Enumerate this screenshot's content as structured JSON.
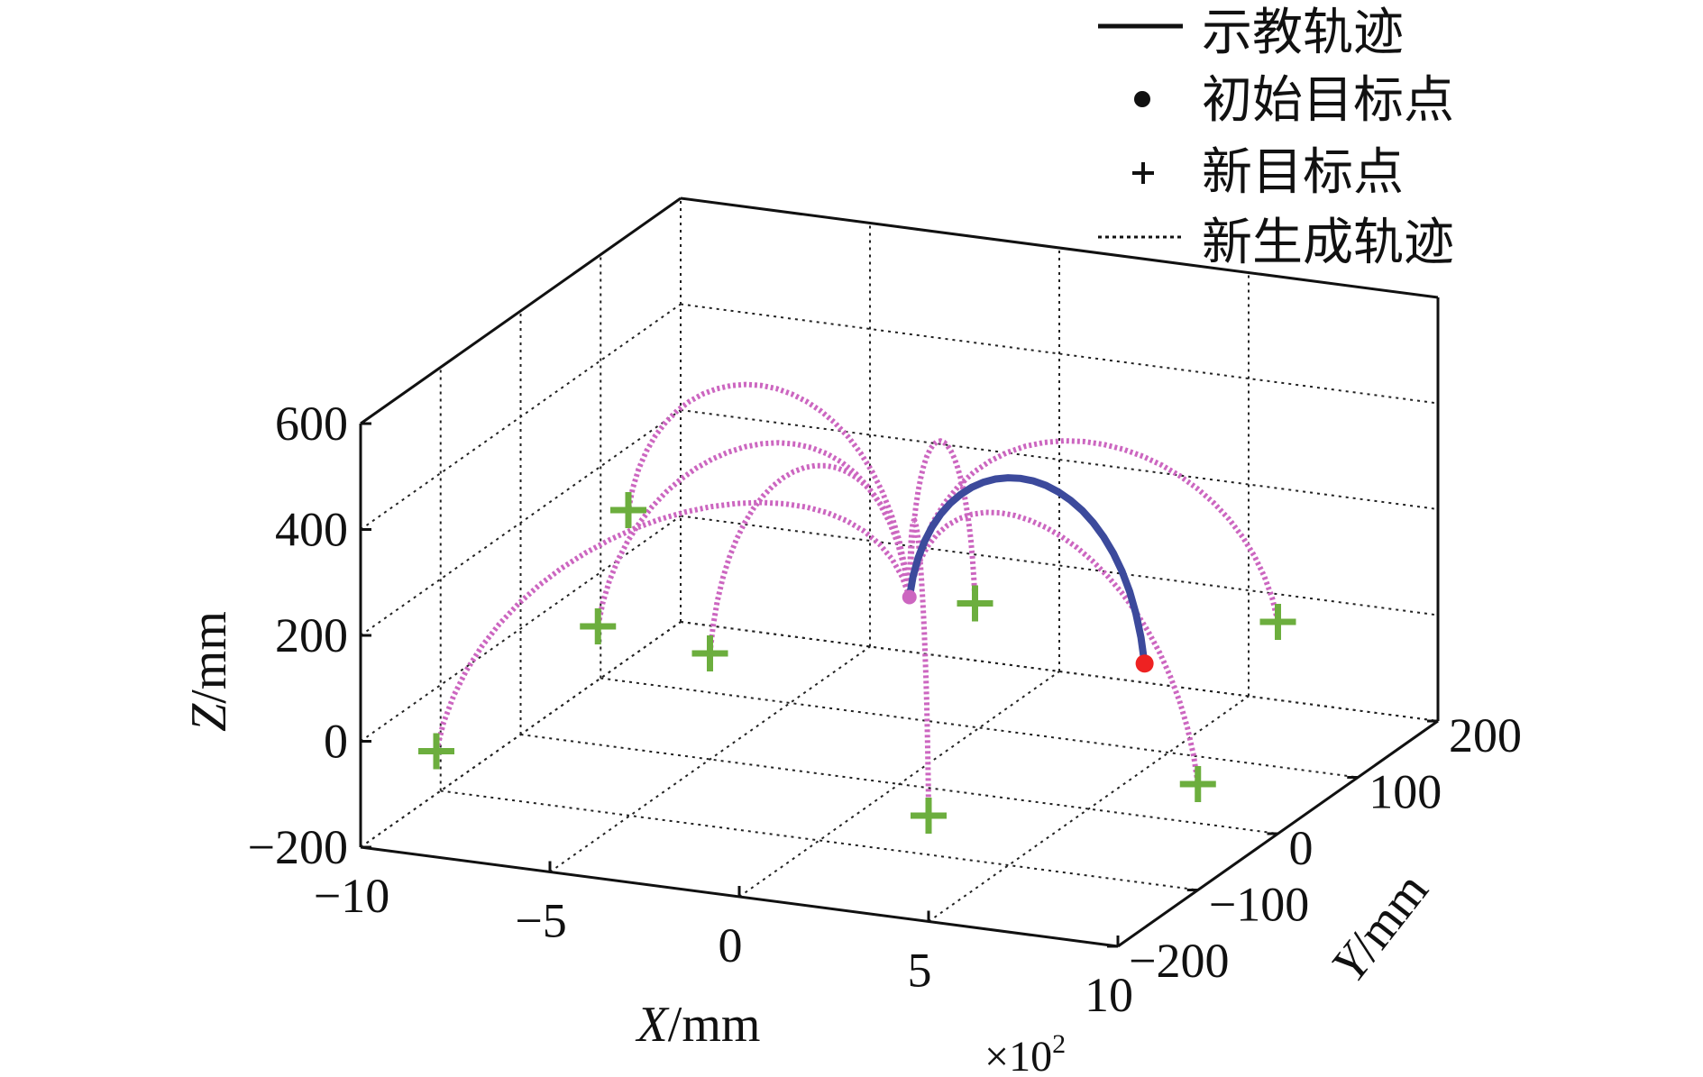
{
  "chart_data": {
    "type": "scatter",
    "projection": "3d",
    "grid": true,
    "legend_position": "top-right",
    "xlabel_var": "X",
    "xlabel_unit": "/mm",
    "ylabel_var": "Y",
    "ylabel_unit": "/mm",
    "zlabel_var": "Z",
    "zlabel_unit": "/mm",
    "x_multiplier_base": "×10",
    "x_multiplier_exp": "2",
    "xlim": [
      -10,
      10
    ],
    "ylim": [
      -200,
      200
    ],
    "zlim": [
      -200,
      600
    ],
    "x_ticks": [
      -10,
      -5,
      0,
      5,
      10
    ],
    "x_tick_labels": [
      "−10",
      "−5",
      "0",
      "5",
      "10"
    ],
    "y_ticks": [
      -200,
      -100,
      0,
      100,
      200
    ],
    "y_tick_labels": [
      "−200",
      "−100",
      "0",
      "100",
      "200"
    ],
    "z_ticks": [
      -200,
      0,
      200,
      400,
      600
    ],
    "z_tick_labels": [
      "−200",
      "0",
      "200",
      "400",
      "600"
    ],
    "legend": [
      {
        "key": "demo",
        "label": "示教轨迹"
      },
      {
        "key": "initial",
        "label": "初始目标点"
      },
      {
        "key": "new_target",
        "label": "新目标点"
      },
      {
        "key": "generated",
        "label": "新生成轨迹"
      }
    ],
    "colors": {
      "demo": "#3c4a9c",
      "initial": "#ee2222",
      "new_target": "#6cae3e",
      "generated": "#cc66c0",
      "axes": "#111111",
      "grid": "#222222"
    },
    "start_point": [
      -1,
      60,
      80
    ],
    "demo_target": [
      5,
      70,
      0
    ],
    "new_targets": [
      [
        -8,
        40,
        200
      ],
      [
        -5,
        -140,
        200
      ],
      [
        -5,
        0,
        0
      ],
      [
        -8,
        -200,
        0
      ],
      [
        2,
        0,
        160
      ],
      [
        10,
        0,
        200
      ],
      [
        10,
        -100,
        0
      ],
      [
        5,
        -200,
        0
      ]
    ]
  }
}
